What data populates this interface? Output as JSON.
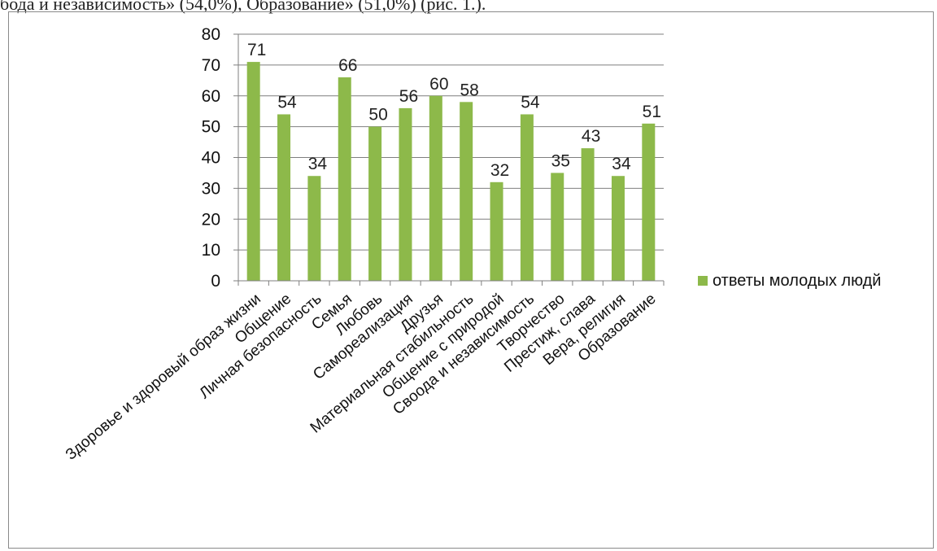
{
  "header": {
    "text": "бода и независимость» (54,0%), Образование» (51,0%) (рис. 1.)."
  },
  "colors": {
    "bar": "#8db94a",
    "grid": "#7f7f7f",
    "axis": "#7f7f7f"
  },
  "chart_data": {
    "type": "bar",
    "title": "",
    "xlabel": "",
    "ylabel": "",
    "ylim": [
      0,
      80
    ],
    "yticks": [
      0,
      10,
      20,
      30,
      40,
      50,
      60,
      70,
      80
    ],
    "grid": true,
    "legend_position": "right",
    "categories": [
      "Здоровье и здоровый образ жизни",
      "Общение",
      "Личная безопасность",
      "Семья",
      "Любовь",
      "Самореализация",
      "Друзья",
      "Материальная стабильность",
      "Общение с природой",
      "Своода и независимость",
      "Творчество",
      "Престиж, слава",
      "Вера, религия",
      "Образование"
    ],
    "series": [
      {
        "name": "ответы молодых людй",
        "values": [
          71,
          54,
          34,
          66,
          50,
          56,
          60,
          58,
          32,
          54,
          35,
          43,
          34,
          51
        ]
      }
    ]
  }
}
